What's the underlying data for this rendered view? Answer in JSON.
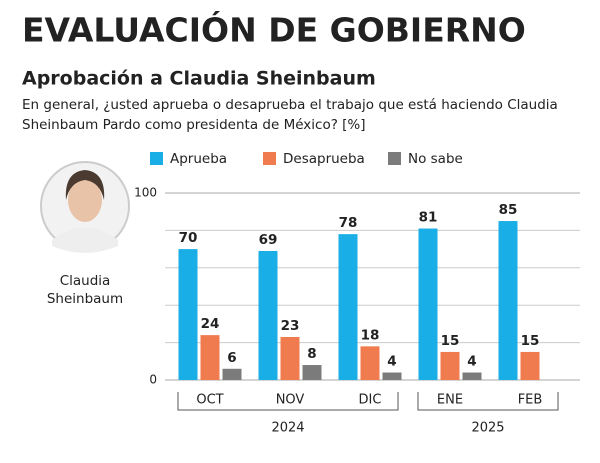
{
  "chart_data": {
    "type": "bar",
    "title": "EVALUACIÓN DE GOBIERNO",
    "subtitle": "Aprobación a Claudia Sheinbaum",
    "question_lines": [
      "En general, ¿usted aprueba o desaprueba el trabajo que está haciendo Claudia",
      "Sheinbaum Pardo como presidenta de México? [%]"
    ],
    "categories": [
      "OCT",
      "NOV",
      "DIC",
      "ENE",
      "FEB"
    ],
    "x_groups": [
      {
        "label": "2024",
        "start": 0,
        "end": 2
      },
      {
        "label": "2025",
        "start": 3,
        "end": 4
      }
    ],
    "series": [
      {
        "name": "Aprueba",
        "color": "#1aaee6",
        "values": [
          70,
          69,
          78,
          81,
          85
        ]
      },
      {
        "name": "Desaprueba",
        "color": "#f07b4f",
        "values": [
          24,
          23,
          18,
          15,
          15
        ]
      },
      {
        "name": "No sabe",
        "color": "#7b7b7b",
        "values": [
          6,
          8,
          4,
          4,
          null
        ]
      }
    ],
    "ylim": [
      0,
      100
    ],
    "yticks": [
      0,
      100
    ],
    "minor_gridlines": [
      20,
      40,
      60,
      80
    ],
    "grid": true,
    "legend": "top"
  },
  "profile": {
    "caption_lines": [
      "Claudia",
      "Sheinbaum"
    ]
  }
}
